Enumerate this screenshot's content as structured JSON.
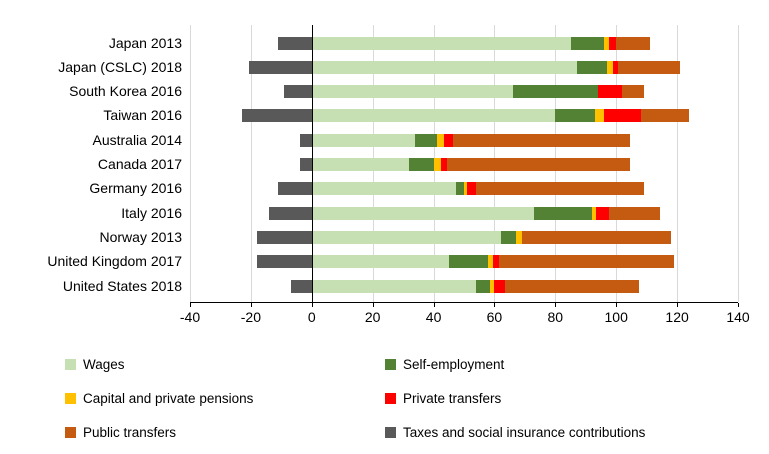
{
  "chart_data": {
    "type": "bar",
    "orientation": "horizontal",
    "stacked": true,
    "title": "",
    "xlabel": "",
    "ylabel": "",
    "xlim": [
      -40,
      140
    ],
    "x_ticks": [
      -40,
      -20,
      0,
      20,
      40,
      60,
      80,
      100,
      120,
      140
    ],
    "grid": "vertical-gridlines",
    "legend_position": "bottom-two-columns",
    "categories": [
      "Japan 2013",
      "Japan (CSLC) 2018",
      "South Korea 2016",
      "Taiwan 2016",
      "Australia 2014",
      "Canada 2017",
      "Germany 2016",
      "Italy 2016",
      "Norway 2013",
      "United Kingdom 2017",
      "United States 2018"
    ],
    "series": [
      {
        "name": "Wages",
        "color": "#c6e0b4",
        "values": [
          85,
          87,
          66,
          80,
          34,
          32,
          47.5,
          73,
          62,
          45,
          54
        ]
      },
      {
        "name": "Self-employment",
        "color": "#548235",
        "values": [
          11,
          10,
          28,
          13,
          7,
          8,
          2.5,
          19,
          5,
          13,
          4.5
        ]
      },
      {
        "name": "Capital and private pensions",
        "color": "#ffc000",
        "values": [
          1.5,
          2,
          0,
          3,
          2.5,
          2.5,
          1,
          1.5,
          2,
          1.5,
          1.5
        ]
      },
      {
        "name": "Private transfers",
        "color": "#ff0000",
        "values": [
          2.5,
          1.5,
          8,
          12,
          3,
          2,
          3,
          4,
          0,
          2,
          3.5
        ]
      },
      {
        "name": "Public transfers",
        "color": "#c55a11",
        "values": [
          11,
          20.5,
          7,
          16,
          58,
          60,
          55,
          17,
          49,
          57.5,
          44
        ]
      },
      {
        "name": "Taxes and social insurance contributions",
        "color": "#595959",
        "values": [
          -11,
          -20.5,
          -9,
          -23,
          -4,
          -4,
          -11,
          -14,
          -18,
          -18,
          -7
        ]
      }
    ],
    "colors": {
      "axis": "#000000",
      "gridline": "#d9d9d9",
      "text": "#000000",
      "background": "#ffffff"
    }
  }
}
